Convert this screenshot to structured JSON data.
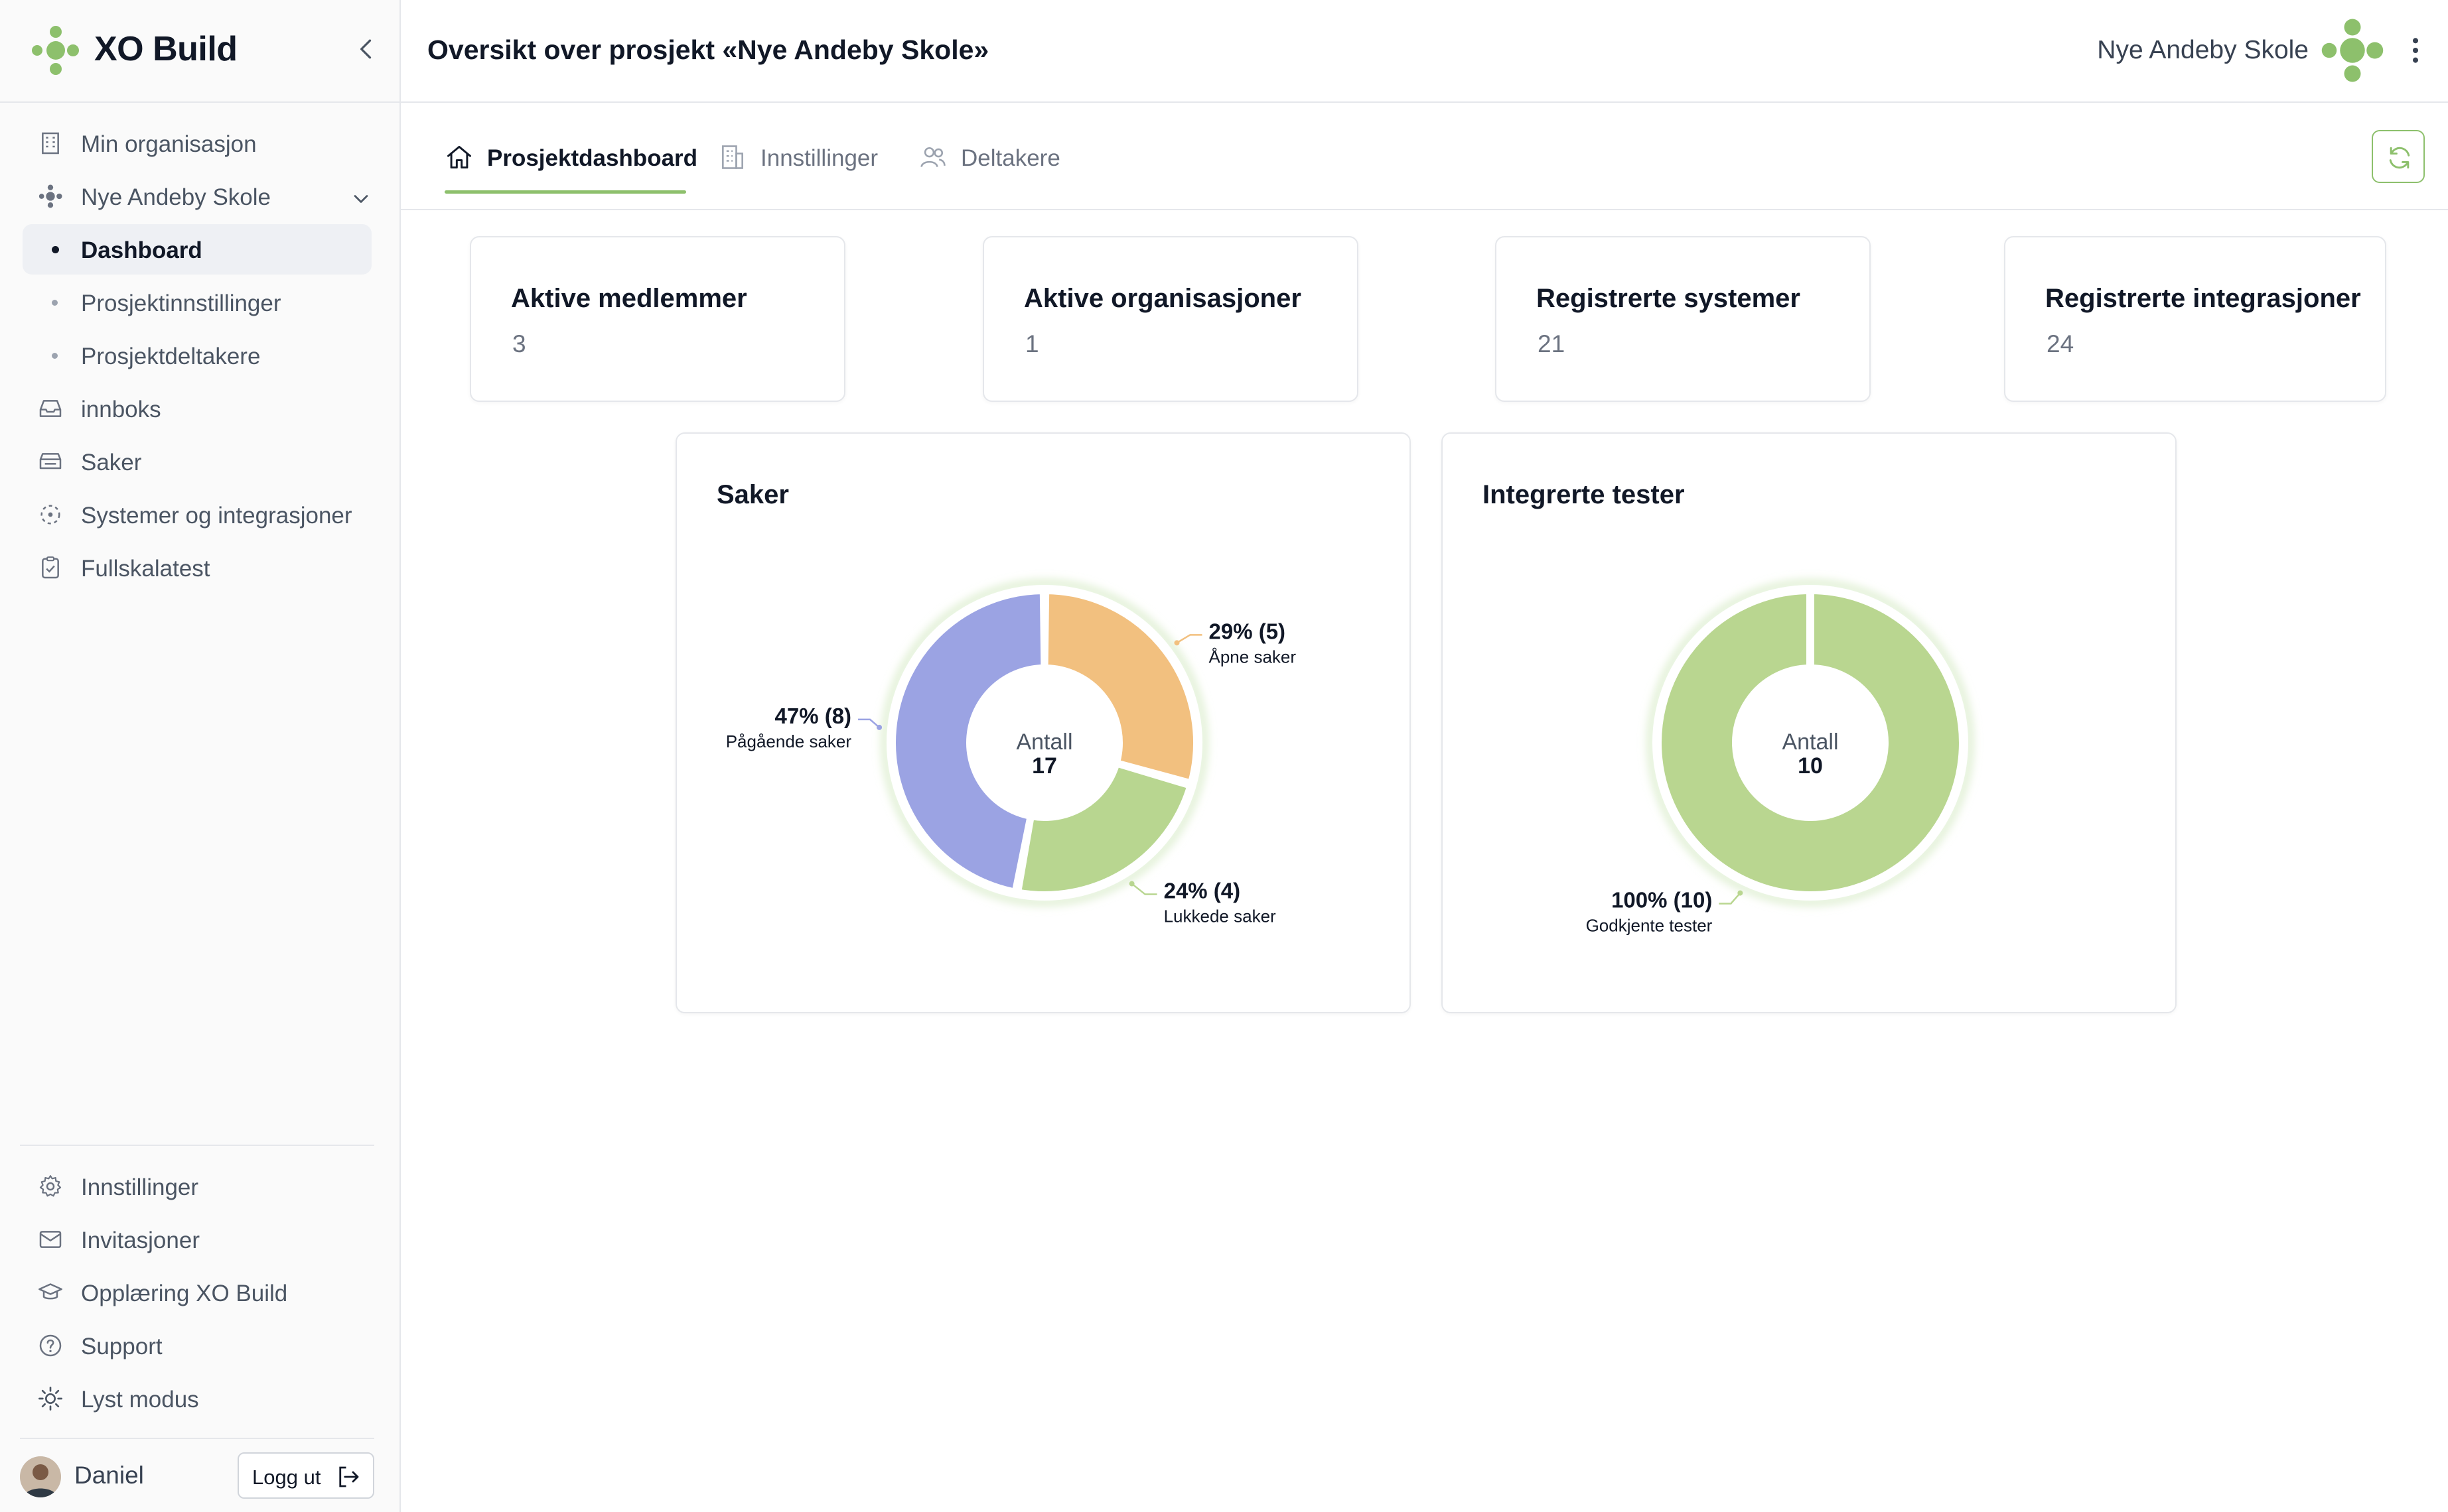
{
  "app": {
    "name": "XO Build"
  },
  "sidebar": {
    "items": [
      {
        "label": "Min organisasjon",
        "icon": "building-icon"
      },
      {
        "label": "Nye Andeby Skole",
        "icon": "project-icon"
      },
      {
        "label": "Dashboard"
      },
      {
        "label": "Prosjektinnstillinger"
      },
      {
        "label": "Prosjektdeltakere"
      },
      {
        "label": "innboks",
        "icon": "inbox-icon"
      },
      {
        "label": "Saker",
        "icon": "tray-icon"
      },
      {
        "label": "Systemer og integrasjoner",
        "icon": "integration-icon"
      },
      {
        "label": "Fullskalatest",
        "icon": "clipboard-check-icon"
      }
    ],
    "bottom_items": [
      {
        "label": "Innstillinger",
        "icon": "gear-icon"
      },
      {
        "label": "Invitasjoner",
        "icon": "mail-icon"
      },
      {
        "label": "Opplæring XO Build",
        "icon": "graduation-cap-icon"
      },
      {
        "label": "Support",
        "icon": "help-icon"
      },
      {
        "label": "Lyst modus",
        "icon": "sun-icon"
      }
    ],
    "user": {
      "name": "Daniel",
      "logout_label": "Logg ut"
    }
  },
  "header": {
    "title": "Oversikt over prosjekt «Nye Andeby Skole»",
    "project_name": "Nye Andeby Skole"
  },
  "tabs": [
    {
      "label": "Prosjektdashboard",
      "icon": "home-icon",
      "active": true
    },
    {
      "label": "Innstillinger",
      "icon": "building-icon",
      "active": false
    },
    {
      "label": "Deltakere",
      "icon": "users-icon",
      "active": false
    }
  ],
  "stats": [
    {
      "title": "Aktive medlemmer",
      "value": "3"
    },
    {
      "title": "Aktive organisasjoner",
      "value": "1"
    },
    {
      "title": "Registrerte systemer",
      "value": "21"
    },
    {
      "title": "Registrerte integrasjoner",
      "value": "24"
    }
  ],
  "colors": {
    "accent": "#8dc06c",
    "open": "#f2c07f",
    "closed": "#b8d690",
    "in_progress": "#9ba3e3",
    "approved": "#b9d690"
  },
  "chart_data": [
    {
      "type": "donut",
      "title": "Saker",
      "center_label": "Antall",
      "total": 17,
      "slices": [
        {
          "name": "Åpne saker",
          "value": 5,
          "percent": 29,
          "label": "29% (5)",
          "color": "#f2c07f"
        },
        {
          "name": "Lukkede saker",
          "value": 4,
          "percent": 24,
          "label": "24% (4)",
          "color": "#b8d690"
        },
        {
          "name": "Pågående saker",
          "value": 8,
          "percent": 47,
          "label": "47% (8)",
          "color": "#9ba3e3"
        }
      ]
    },
    {
      "type": "donut",
      "title": "Integrerte tester",
      "center_label": "Antall",
      "total": 10,
      "slices": [
        {
          "name": "Godkjente tester",
          "value": 10,
          "percent": 100,
          "label": "100% (10)",
          "color": "#b9d690"
        }
      ]
    }
  ]
}
